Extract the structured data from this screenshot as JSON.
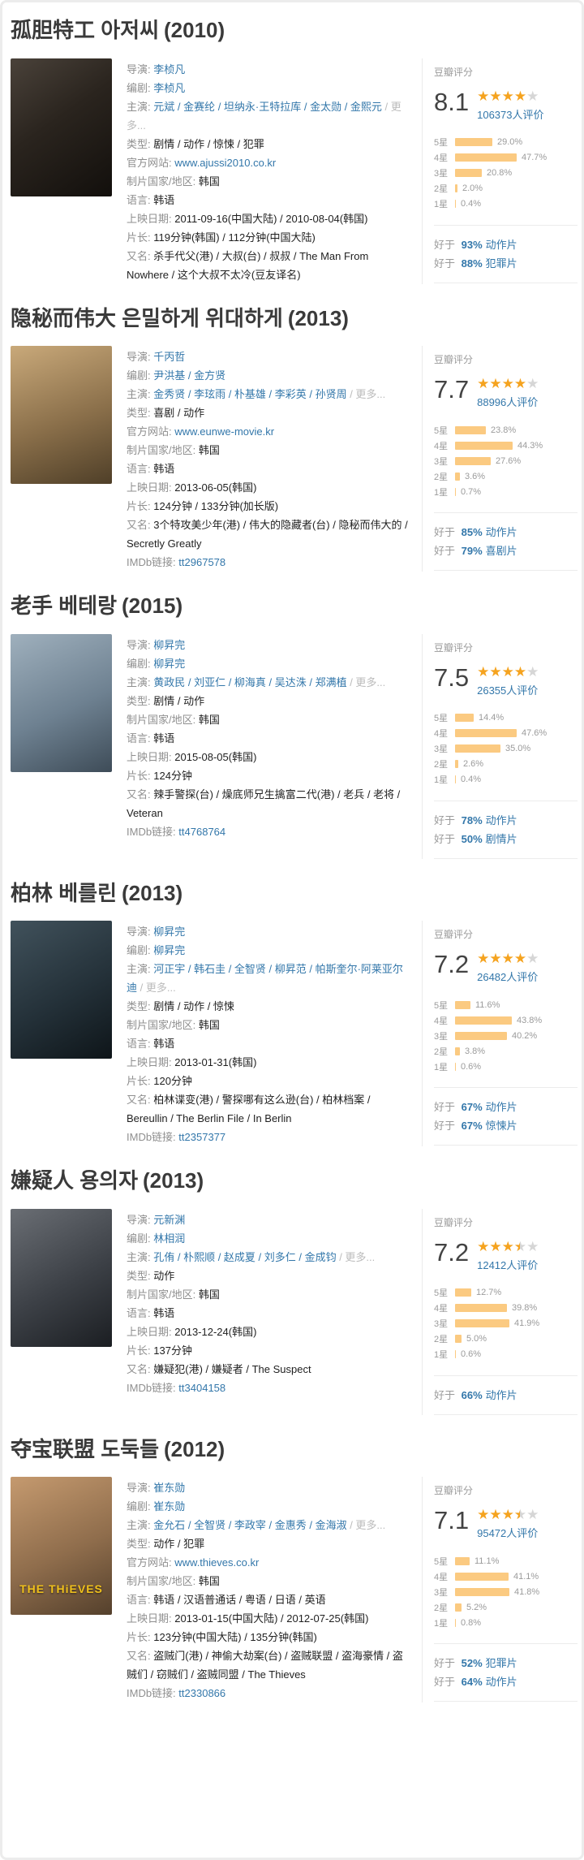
{
  "colors": {
    "link_blue": "#3377aa",
    "star_orange": "#f5a31f",
    "bar_orange": "#fbca81",
    "label_gray": "#8f8f8f",
    "title_dark": "#3a3a3a"
  },
  "movies": [
    {
      "title": "孤胆特工 아저씨",
      "year": "(2010)",
      "poster_bg": "background:linear-gradient(145deg,#4a423a 0%,#2a241e 45%,#120f0c 100%)",
      "poster_text": "",
      "info": [
        {
          "label": "导演:",
          "value": "李桢凡",
          "cls": "val link",
          "inter": "true",
          "suffix": ""
        },
        {
          "label": "编剧:",
          "value": "李桢凡",
          "cls": "val link",
          "inter": "true",
          "suffix": ""
        },
        {
          "label": "主演:",
          "value": "元斌 / 金赛纶 / 坦纳永·王特拉库 / 金太勋 / 金熙元",
          "cls": "val link",
          "inter": "true",
          "suffix": " / 更多..."
        },
        {
          "label": "类型:",
          "value": "剧情 / 动作 / 惊悚 / 犯罪",
          "cls": "val plain",
          "inter": "false",
          "suffix": ""
        },
        {
          "label": "官方网站:",
          "value": "www.ajussi2010.co.kr",
          "cls": "val link",
          "inter": "true",
          "suffix": ""
        },
        {
          "label": "制片国家/地区:",
          "value": "韩国",
          "cls": "val plain",
          "inter": "false",
          "suffix": ""
        },
        {
          "label": "语言:",
          "value": "韩语",
          "cls": "val plain",
          "inter": "false",
          "suffix": ""
        },
        {
          "label": "上映日期:",
          "value": "2011-09-16(中国大陆) / 2010-08-04(韩国)",
          "cls": "val plain",
          "inter": "false",
          "suffix": ""
        },
        {
          "label": "片长:",
          "value": "119分钟(韩国) / 112分钟(中国大陆)",
          "cls": "val plain",
          "inter": "false",
          "suffix": ""
        },
        {
          "label": "又名:",
          "value": "杀手代父(港) / 大叔(台) / 叔叔 / The Man From Nowhere / 这个大叔不太冷(豆友译名)",
          "cls": "val plain",
          "inter": "false",
          "suffix": ""
        }
      ],
      "rating": {
        "header": "豆瓣评分",
        "score": "8.1",
        "stars": 4,
        "votes": "106373",
        "votes_suffix": "人评价",
        "distribution": [
          {
            "label": "5星",
            "percent": 29.0,
            "pct": "29.0%"
          },
          {
            "label": "4星",
            "percent": 47.7,
            "pct": "47.7%"
          },
          {
            "label": "3星",
            "percent": 20.8,
            "pct": "20.8%"
          },
          {
            "label": "2星",
            "percent": 2.0,
            "pct": "2.0%"
          },
          {
            "label": "1星",
            "percent": 0.4,
            "pct": "0.4%"
          }
        ],
        "betterthan": [
          {
            "prefix": "好于",
            "percent": "93%",
            "genre": "动作片"
          },
          {
            "prefix": "好于",
            "percent": "88%",
            "genre": "犯罪片"
          }
        ]
      }
    },
    {
      "title": "隐秘而伟大 은밀하게 위대하게",
      "year": "(2013)",
      "poster_bg": "background:linear-gradient(160deg,#c9a97a 0%,#8a6f4a 55%,#4f3f28 100%)",
      "poster_text": "",
      "info": [
        {
          "label": "导演:",
          "value": "千丙哲",
          "cls": "val link",
          "inter": "true",
          "suffix": ""
        },
        {
          "label": "编剧:",
          "value": "尹洪基 / 金方贤",
          "cls": "val link",
          "inter": "true",
          "suffix": ""
        },
        {
          "label": "主演:",
          "value": "金秀贤 / 李玹雨 / 朴基雄 / 李彩英 / 孙贤周",
          "cls": "val link",
          "inter": "true",
          "suffix": " / 更多..."
        },
        {
          "label": "类型:",
          "value": "喜剧 / 动作",
          "cls": "val plain",
          "inter": "false",
          "suffix": ""
        },
        {
          "label": "官方网站:",
          "value": "www.eunwe-movie.kr",
          "cls": "val link",
          "inter": "true",
          "suffix": ""
        },
        {
          "label": "制片国家/地区:",
          "value": "韩国",
          "cls": "val plain",
          "inter": "false",
          "suffix": ""
        },
        {
          "label": "语言:",
          "value": "韩语",
          "cls": "val plain",
          "inter": "false",
          "suffix": ""
        },
        {
          "label": "上映日期:",
          "value": "2013-06-05(韩国)",
          "cls": "val plain",
          "inter": "false",
          "suffix": ""
        },
        {
          "label": "片长:",
          "value": "124分钟 / 133分钟(加长版)",
          "cls": "val plain",
          "inter": "false",
          "suffix": ""
        },
        {
          "label": "又名:",
          "value": "3个特攻美少年(港) / 伟大的隐藏者(台) / 隐秘而伟大的 / Secretly Greatly",
          "cls": "val plain",
          "inter": "false",
          "suffix": ""
        },
        {
          "label": "IMDb链接:",
          "value": "tt2967578",
          "cls": "val link",
          "inter": "true",
          "suffix": ""
        }
      ],
      "rating": {
        "header": "豆瓣评分",
        "score": "7.7",
        "stars": 4,
        "votes": "88996",
        "votes_suffix": "人评价",
        "distribution": [
          {
            "label": "5星",
            "percent": 23.8,
            "pct": "23.8%"
          },
          {
            "label": "4星",
            "percent": 44.3,
            "pct": "44.3%"
          },
          {
            "label": "3星",
            "percent": 27.6,
            "pct": "27.6%"
          },
          {
            "label": "2星",
            "percent": 3.6,
            "pct": "3.6%"
          },
          {
            "label": "1星",
            "percent": 0.7,
            "pct": "0.7%"
          }
        ],
        "betterthan": [
          {
            "prefix": "好于",
            "percent": "85%",
            "genre": "动作片"
          },
          {
            "prefix": "好于",
            "percent": "79%",
            "genre": "喜剧片"
          }
        ]
      }
    },
    {
      "title": "老手 베테랑",
      "year": "(2015)",
      "poster_bg": "background:linear-gradient(155deg,#9fb0bd 0%,#6e8191 55%,#3e4c58 100%)",
      "poster_text": "",
      "info": [
        {
          "label": "导演:",
          "value": "柳昇完",
          "cls": "val link",
          "inter": "true",
          "suffix": ""
        },
        {
          "label": "编剧:",
          "value": "柳昇完",
          "cls": "val link",
          "inter": "true",
          "suffix": ""
        },
        {
          "label": "主演:",
          "value": "黄政民 / 刘亚仁 / 柳海真 / 吴达洙 / 郑满植",
          "cls": "val link",
          "inter": "true",
          "suffix": " / 更多..."
        },
        {
          "label": "类型:",
          "value": "剧情 / 动作",
          "cls": "val plain",
          "inter": "false",
          "suffix": ""
        },
        {
          "label": "制片国家/地区:",
          "value": "韩国",
          "cls": "val plain",
          "inter": "false",
          "suffix": ""
        },
        {
          "label": "语言:",
          "value": "韩语",
          "cls": "val plain",
          "inter": "false",
          "suffix": ""
        },
        {
          "label": "上映日期:",
          "value": "2015-08-05(韩国)",
          "cls": "val plain",
          "inter": "false",
          "suffix": ""
        },
        {
          "label": "片长:",
          "value": "124分钟",
          "cls": "val plain",
          "inter": "false",
          "suffix": ""
        },
        {
          "label": "又名:",
          "value": "辣手警探(台) / 燥底师兄生擒富二代(港) / 老兵 / 老将 / Veteran",
          "cls": "val plain",
          "inter": "false",
          "suffix": ""
        },
        {
          "label": "IMDb链接:",
          "value": "tt4768764",
          "cls": "val link",
          "inter": "true",
          "suffix": ""
        }
      ],
      "rating": {
        "header": "豆瓣评分",
        "score": "7.5",
        "stars": 4,
        "votes": "26355",
        "votes_suffix": "人评价",
        "distribution": [
          {
            "label": "5星",
            "percent": 14.4,
            "pct": "14.4%"
          },
          {
            "label": "4星",
            "percent": 47.6,
            "pct": "47.6%"
          },
          {
            "label": "3星",
            "percent": 35.0,
            "pct": "35.0%"
          },
          {
            "label": "2星",
            "percent": 2.6,
            "pct": "2.6%"
          },
          {
            "label": "1星",
            "percent": 0.4,
            "pct": "0.4%"
          }
        ],
        "betterthan": [
          {
            "prefix": "好于",
            "percent": "78%",
            "genre": "动作片"
          },
          {
            "prefix": "好于",
            "percent": "50%",
            "genre": "剧情片"
          }
        ]
      }
    },
    {
      "title": "柏林 베를린",
      "year": "(2013)",
      "poster_bg": "background:linear-gradient(150deg,#41525c 0%,#243139 55%,#0e1519 100%)",
      "poster_text": "",
      "info": [
        {
          "label": "导演:",
          "value": "柳昇完",
          "cls": "val link",
          "inter": "true",
          "suffix": ""
        },
        {
          "label": "编剧:",
          "value": "柳昇完",
          "cls": "val link",
          "inter": "true",
          "suffix": ""
        },
        {
          "label": "主演:",
          "value": "河正宇 / 韩石圭 / 全智贤 / 柳昇范 / 帕斯奎尔·阿莱亚尔迪",
          "cls": "val link",
          "inter": "true",
          "suffix": " / 更多..."
        },
        {
          "label": "类型:",
          "value": "剧情 / 动作 / 惊悚",
          "cls": "val plain",
          "inter": "false",
          "suffix": ""
        },
        {
          "label": "制片国家/地区:",
          "value": "韩国",
          "cls": "val plain",
          "inter": "false",
          "suffix": ""
        },
        {
          "label": "语言:",
          "value": "韩语",
          "cls": "val plain",
          "inter": "false",
          "suffix": ""
        },
        {
          "label": "上映日期:",
          "value": "2013-01-31(韩国)",
          "cls": "val plain",
          "inter": "false",
          "suffix": ""
        },
        {
          "label": "片长:",
          "value": "120分钟",
          "cls": "val plain",
          "inter": "false",
          "suffix": ""
        },
        {
          "label": "又名:",
          "value": "柏林谍变(港) / 警探哪有这么逊(台) / 柏林档案 / Bereullin / The Berlin File / In Berlin",
          "cls": "val plain",
          "inter": "false",
          "suffix": ""
        },
        {
          "label": "IMDb链接:",
          "value": "tt2357377",
          "cls": "val link",
          "inter": "true",
          "suffix": ""
        }
      ],
      "rating": {
        "header": "豆瓣评分",
        "score": "7.2",
        "stars": 4,
        "votes": "26482",
        "votes_suffix": "人评价",
        "distribution": [
          {
            "label": "5星",
            "percent": 11.6,
            "pct": "11.6%"
          },
          {
            "label": "4星",
            "percent": 43.8,
            "pct": "43.8%"
          },
          {
            "label": "3星",
            "percent": 40.2,
            "pct": "40.2%"
          },
          {
            "label": "2星",
            "percent": 3.8,
            "pct": "3.8%"
          },
          {
            "label": "1星",
            "percent": 0.6,
            "pct": "0.6%"
          }
        ],
        "betterthan": [
          {
            "prefix": "好于",
            "percent": "67%",
            "genre": "动作片"
          },
          {
            "prefix": "好于",
            "percent": "67%",
            "genre": "惊悚片"
          }
        ]
      }
    },
    {
      "title": "嫌疑人 용의자",
      "year": "(2013)",
      "poster_bg": "background:linear-gradient(150deg,#6a6e74 0%,#3c4046 55%,#1b1e22 100%)",
      "poster_text": "",
      "info": [
        {
          "label": "导演:",
          "value": "元新渊",
          "cls": "val link",
          "inter": "true",
          "suffix": ""
        },
        {
          "label": "编剧:",
          "value": "林相润",
          "cls": "val link",
          "inter": "true",
          "suffix": ""
        },
        {
          "label": "主演:",
          "value": "孔侑 / 朴熙顺 / 赵成夏 / 刘多仁 / 金成钧",
          "cls": "val link",
          "inter": "true",
          "suffix": " / 更多..."
        },
        {
          "label": "类型:",
          "value": "动作",
          "cls": "val plain",
          "inter": "false",
          "suffix": ""
        },
        {
          "label": "制片国家/地区:",
          "value": "韩国",
          "cls": "val plain",
          "inter": "false",
          "suffix": ""
        },
        {
          "label": "语言:",
          "value": "韩语",
          "cls": "val plain",
          "inter": "false",
          "suffix": ""
        },
        {
          "label": "上映日期:",
          "value": "2013-12-24(韩国)",
          "cls": "val plain",
          "inter": "false",
          "suffix": ""
        },
        {
          "label": "片长:",
          "value": "137分钟",
          "cls": "val plain",
          "inter": "false",
          "suffix": ""
        },
        {
          "label": "又名:",
          "value": "嫌疑犯(港) / 嫌疑者 / The Suspect",
          "cls": "val plain",
          "inter": "false",
          "suffix": ""
        },
        {
          "label": "IMDb链接:",
          "value": "tt3404158",
          "cls": "val link",
          "inter": "true",
          "suffix": ""
        }
      ],
      "rating": {
        "header": "豆瓣评分",
        "score": "7.2",
        "stars": 3.5,
        "votes": "12412",
        "votes_suffix": "人评价",
        "distribution": [
          {
            "label": "5星",
            "percent": 12.7,
            "pct": "12.7%"
          },
          {
            "label": "4星",
            "percent": 39.8,
            "pct": "39.8%"
          },
          {
            "label": "3星",
            "percent": 41.9,
            "pct": "41.9%"
          },
          {
            "label": "2星",
            "percent": 5.0,
            "pct": "5.0%"
          },
          {
            "label": "1星",
            "percent": 0.6,
            "pct": "0.6%"
          }
        ],
        "betterthan": [
          {
            "prefix": "好于",
            "percent": "66%",
            "genre": "动作片"
          }
        ]
      }
    },
    {
      "title": "夺宝联盟 도둑들",
      "year": "(2012)",
      "poster_bg": "background:linear-gradient(155deg,#c59a6f 0%,#8f6d4c 55%,#54402c 100%)",
      "poster_text": "THE THiEVES",
      "info": [
        {
          "label": "导演:",
          "value": "崔东勋",
          "cls": "val link",
          "inter": "true",
          "suffix": ""
        },
        {
          "label": "编剧:",
          "value": "崔东勋",
          "cls": "val link",
          "inter": "true",
          "suffix": ""
        },
        {
          "label": "主演:",
          "value": "金允石 / 全智贤 / 李政宰 / 金惠秀 / 金海淑",
          "cls": "val link",
          "inter": "true",
          "suffix": " / 更多..."
        },
        {
          "label": "类型:",
          "value": "动作 / 犯罪",
          "cls": "val plain",
          "inter": "false",
          "suffix": ""
        },
        {
          "label": "官方网站:",
          "value": "www.thieves.co.kr",
          "cls": "val link",
          "inter": "true",
          "suffix": ""
        },
        {
          "label": "制片国家/地区:",
          "value": "韩国",
          "cls": "val plain",
          "inter": "false",
          "suffix": ""
        },
        {
          "label": "语言:",
          "value": "韩语 / 汉语普通话 / 粤语 / 日语 / 英语",
          "cls": "val plain",
          "inter": "false",
          "suffix": ""
        },
        {
          "label": "上映日期:",
          "value": "2013-01-15(中国大陆) / 2012-07-25(韩国)",
          "cls": "val plain",
          "inter": "false",
          "suffix": ""
        },
        {
          "label": "片长:",
          "value": "123分钟(中国大陆) / 135分钟(韩国)",
          "cls": "val plain",
          "inter": "false",
          "suffix": ""
        },
        {
          "label": "又名:",
          "value": "盗贼门(港) / 神偷大劫案(台) / 盗贼联盟 / 盗海豪情 / 盗贼们 / 窃贼们 / 盗贼同盟 / The Thieves",
          "cls": "val plain",
          "inter": "false",
          "suffix": ""
        },
        {
          "label": "IMDb链接:",
          "value": "tt2330866",
          "cls": "val link",
          "inter": "true",
          "suffix": ""
        }
      ],
      "rating": {
        "header": "豆瓣评分",
        "score": "7.1",
        "stars": 3.5,
        "votes": "95472",
        "votes_suffix": "人评价",
        "distribution": [
          {
            "label": "5星",
            "percent": 11.1,
            "pct": "11.1%"
          },
          {
            "label": "4星",
            "percent": 41.1,
            "pct": "41.1%"
          },
          {
            "label": "3星",
            "percent": 41.8,
            "pct": "41.8%"
          },
          {
            "label": "2星",
            "percent": 5.2,
            "pct": "5.2%"
          },
          {
            "label": "1星",
            "percent": 0.8,
            "pct": "0.8%"
          }
        ],
        "betterthan": [
          {
            "prefix": "好于",
            "percent": "52%",
            "genre": "犯罪片"
          },
          {
            "prefix": "好于",
            "percent": "64%",
            "genre": "动作片"
          }
        ]
      }
    }
  ]
}
